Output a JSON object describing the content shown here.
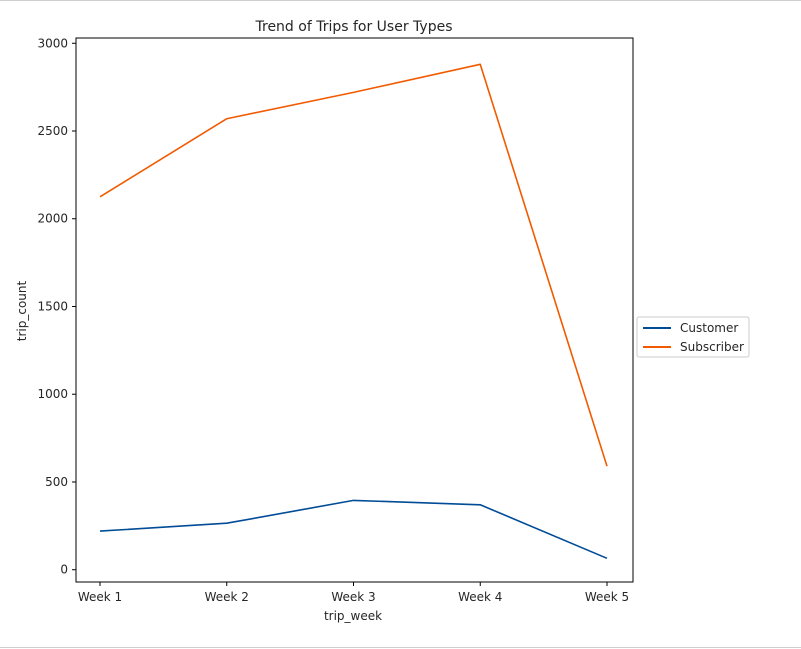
{
  "chart_data": {
    "type": "line",
    "title": "Trend of Trips for User Types",
    "xlabel": "trip_week",
    "ylabel": "trip_count",
    "categories": [
      "Week 1",
      "Week 2",
      "Week 3",
      "Week 4",
      "Week 5"
    ],
    "yticks": [
      0,
      500,
      1000,
      1500,
      2000,
      2500,
      3000
    ],
    "ylim": [
      -70,
      3030
    ],
    "grid": false,
    "legend_position": "center-right-outside",
    "series": [
      {
        "name": "Customer",
        "color": "#004c97",
        "values": [
          220,
          265,
          395,
          370,
          65
        ]
      },
      {
        "name": "Subscriber",
        "color": "#f25a00",
        "values": [
          2125,
          2570,
          2720,
          2880,
          590
        ]
      }
    ]
  }
}
